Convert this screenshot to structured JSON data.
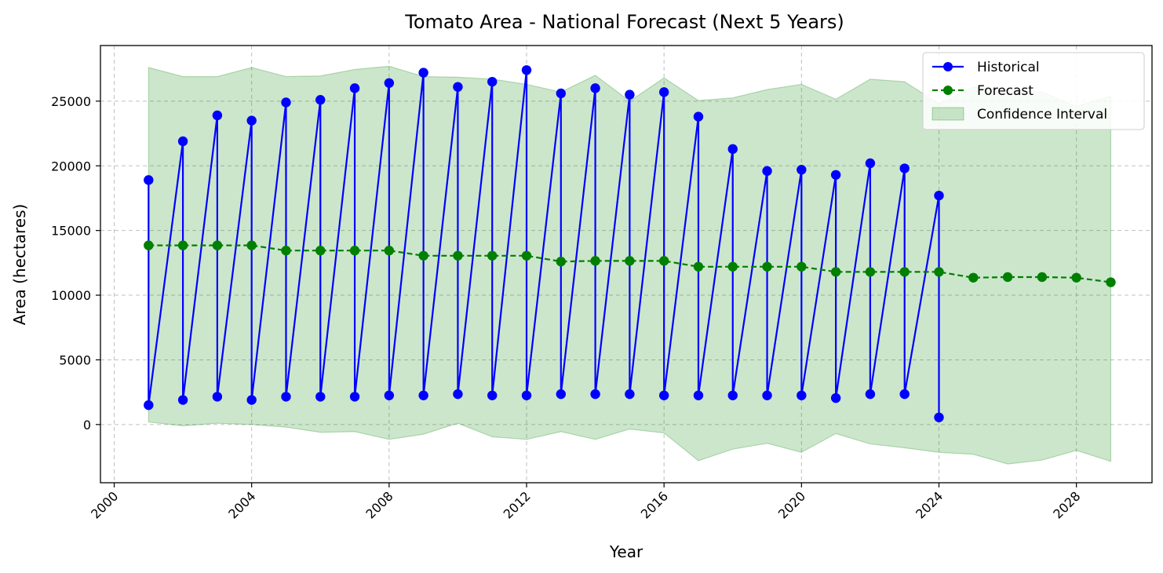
{
  "chart_data": {
    "type": "line",
    "title": "Tomato Area - National Forecast (Next 5 Years)",
    "xlabel": "Year",
    "ylabel": "Area (hectares)",
    "xlim": [
      1999.6,
      2030.2
    ],
    "ylim": [
      -4500,
      29300
    ],
    "x_ticks": [
      "2000",
      "2004",
      "2008",
      "2012",
      "2016",
      "2020",
      "2024",
      "2028"
    ],
    "y_ticks": [
      "0",
      "5000",
      "10000",
      "15000",
      "20000",
      "25000"
    ],
    "x_tick_values": [
      2000,
      2004,
      2008,
      2012,
      2016,
      2020,
      2024,
      2028
    ],
    "y_tick_values": [
      0,
      5000,
      10000,
      15000,
      20000,
      25000
    ],
    "grid": true,
    "legend_position": "top-right",
    "legend": [
      "Historical",
      "Forecast",
      "Confidence Interval"
    ],
    "series": [
      {
        "name": "Historical",
        "color": "#0000ff",
        "style": "solid",
        "marker": "circle",
        "points": [
          [
            2001,
            18900
          ],
          [
            2001,
            1500
          ],
          [
            2002,
            21900
          ],
          [
            2002,
            1900
          ],
          [
            2003,
            23900
          ],
          [
            2003,
            2150
          ],
          [
            2004,
            23500
          ],
          [
            2004,
            1900
          ],
          [
            2005,
            24900
          ],
          [
            2005,
            2150
          ],
          [
            2006,
            25100
          ],
          [
            2006,
            2150
          ],
          [
            2007,
            26000
          ],
          [
            2007,
            2150
          ],
          [
            2008,
            26400
          ],
          [
            2008,
            2250
          ],
          [
            2009,
            27200
          ],
          [
            2009,
            2250
          ],
          [
            2010,
            26100
          ],
          [
            2010,
            2350
          ],
          [
            2011,
            26500
          ],
          [
            2011,
            2250
          ],
          [
            2012,
            27400
          ],
          [
            2012,
            2250
          ],
          [
            2013,
            25600
          ],
          [
            2013,
            2350
          ],
          [
            2014,
            26000
          ],
          [
            2014,
            2350
          ],
          [
            2015,
            25500
          ],
          [
            2015,
            2350
          ],
          [
            2016,
            25700
          ],
          [
            2016,
            2250
          ],
          [
            2017,
            23800
          ],
          [
            2017,
            2250
          ],
          [
            2018,
            21300
          ],
          [
            2018,
            2250
          ],
          [
            2019,
            19600
          ],
          [
            2019,
            2250
          ],
          [
            2020,
            19700
          ],
          [
            2020,
            2250
          ],
          [
            2021,
            19300
          ],
          [
            2021,
            2050
          ],
          [
            2022,
            20200
          ],
          [
            2022,
            2350
          ],
          [
            2023,
            19800
          ],
          [
            2023,
            2350
          ],
          [
            2024,
            17700
          ],
          [
            2024,
            550
          ]
        ]
      },
      {
        "name": "Forecast",
        "color": "#008000",
        "style": "dashed",
        "marker": "circle",
        "points": [
          [
            2001,
            13850
          ],
          [
            2002,
            13850
          ],
          [
            2003,
            13850
          ],
          [
            2004,
            13850
          ],
          [
            2005,
            13450
          ],
          [
            2006,
            13450
          ],
          [
            2007,
            13450
          ],
          [
            2008,
            13450
          ],
          [
            2009,
            13050
          ],
          [
            2010,
            13050
          ],
          [
            2011,
            13050
          ],
          [
            2012,
            13050
          ],
          [
            2013,
            12600
          ],
          [
            2014,
            12650
          ],
          [
            2015,
            12650
          ],
          [
            2016,
            12650
          ],
          [
            2017,
            12200
          ],
          [
            2018,
            12200
          ],
          [
            2019,
            12200
          ],
          [
            2020,
            12200
          ],
          [
            2021,
            11800
          ],
          [
            2022,
            11800
          ],
          [
            2023,
            11800
          ],
          [
            2024,
            11800
          ],
          [
            2025,
            11350
          ],
          [
            2026,
            11400
          ],
          [
            2027,
            11400
          ],
          [
            2028,
            11350
          ],
          [
            2029,
            11000
          ]
        ]
      }
    ],
    "confidence_interval": {
      "name": "Confidence Interval",
      "color": "#008000",
      "x": [
        2001,
        2002,
        2003,
        2004,
        2005,
        2006,
        2007,
        2008,
        2009,
        2010,
        2011,
        2012,
        2013,
        2014,
        2015,
        2016,
        2017,
        2018,
        2019,
        2020,
        2021,
        2022,
        2023,
        2024,
        2025,
        2026,
        2027,
        2028,
        2029
      ],
      "upper": [
        27600,
        26900,
        26900,
        27600,
        26900,
        26950,
        27450,
        27700,
        26900,
        26850,
        26700,
        26300,
        25700,
        27000,
        25000,
        26800,
        25050,
        25250,
        25900,
        26300,
        25150,
        26700,
        26500,
        24800,
        26100,
        25900,
        25700,
        24600,
        25400
      ],
      "lower": [
        200,
        -100,
        100,
        0,
        -200,
        -600,
        -550,
        -1150,
        -750,
        100,
        -950,
        -1150,
        -550,
        -1150,
        -350,
        -650,
        -2800,
        -1900,
        -1450,
        -2150,
        -700,
        -1500,
        -1800,
        -2150,
        -2300,
        -3050,
        -2750,
        -2000,
        -2850
      ]
    }
  }
}
